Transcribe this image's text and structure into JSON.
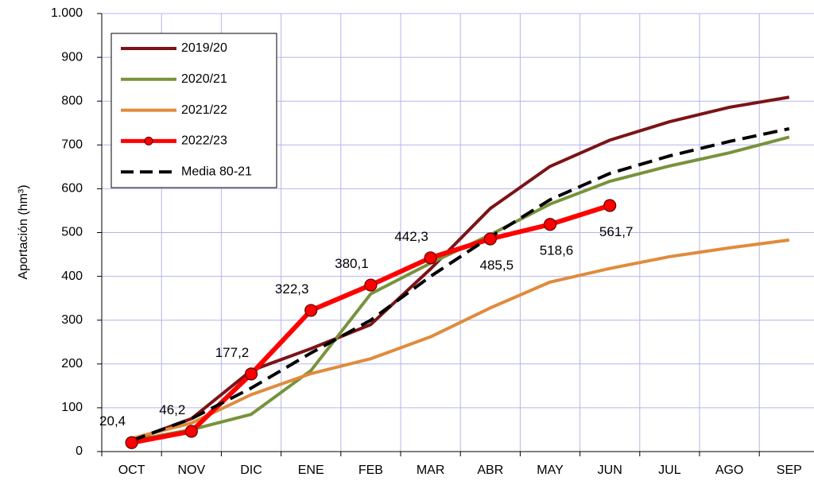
{
  "chart_data": {
    "type": "line",
    "y_label": "Aportación (hm³)",
    "categories": [
      "OCT",
      "NOV",
      "DIC",
      "ENE",
      "FEB",
      "MAR",
      "ABR",
      "MAY",
      "JUN",
      "JUL",
      "AGO",
      "SEP"
    ],
    "ylim": [
      0,
      1000
    ],
    "yticks": [
      0,
      100,
      200,
      300,
      400,
      500,
      600,
      700,
      800,
      900,
      {
        "value": 1000,
        "label": "1.000"
      }
    ],
    "grid": true,
    "legend": "upper-left",
    "series": [
      {
        "name": "2019/20",
        "color": "#7b1416",
        "values": [
          25,
          75,
          185,
          235,
          290,
          417,
          555,
          651,
          711,
          753,
          786,
          809
        ]
      },
      {
        "name": "2020/21",
        "color": "#77933c",
        "values": [
          25,
          50,
          85,
          185,
          360,
          430,
          495,
          565,
          617,
          652,
          682,
          718
        ]
      },
      {
        "name": "2021/22",
        "color": "#e08b3c",
        "values": [
          30,
          65,
          130,
          178,
          212,
          262,
          328,
          387,
          418,
          445,
          465,
          483
        ]
      },
      {
        "name": "2022/23",
        "color": "#ff0000",
        "markers": true,
        "values": [
          20.4,
          46.2,
          177.2,
          322.3,
          380.1,
          442.3,
          485.5,
          518.6,
          561.7,
          null,
          null,
          null
        ],
        "value_labels": [
          "20,4",
          "46,2",
          "177,2",
          "322,3",
          "380,1",
          "442,3",
          "485,5",
          "518,6",
          "561,7",
          null,
          null,
          null
        ]
      },
      {
        "name": "Media 80-21",
        "color": "#000000",
        "dashed": true,
        "values": [
          25,
          75,
          145,
          225,
          300,
          400,
          490,
          575,
          635,
          675,
          708,
          737
        ]
      }
    ]
  }
}
